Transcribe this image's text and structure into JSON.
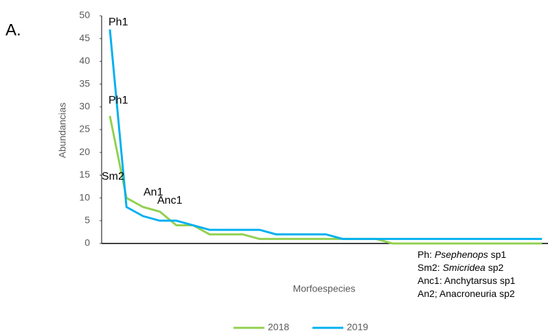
{
  "chart_data": {
    "type": "line",
    "panel_label": "A.",
    "ylabel": "Abundancias",
    "xlabel": "Morfoespecies",
    "categories": [
      null,
      null,
      null,
      null,
      null,
      null,
      null,
      null,
      null,
      null,
      null,
      null,
      null,
      null,
      null,
      null,
      null,
      null,
      null,
      null,
      null,
      null,
      null,
      null,
      null,
      null,
      null
    ],
    "series": [
      {
        "name": "2018",
        "color": "#92d050",
        "values": [
          28,
          10,
          8,
          7,
          4,
          4,
          2,
          2,
          2,
          1,
          1,
          1,
          1,
          1,
          1,
          1,
          1,
          0,
          0,
          0,
          0,
          0,
          0,
          0,
          0,
          0,
          0
        ]
      },
      {
        "name": "2019",
        "color": "#00b0f0",
        "values": [
          47,
          8,
          6,
          5,
          5,
          4,
          3,
          3,
          3,
          3,
          2,
          2,
          2,
          2,
          1,
          1,
          1,
          1,
          1,
          1,
          1,
          1,
          1,
          1,
          1,
          1,
          1
        ]
      }
    ],
    "ylim": [
      0,
      50
    ],
    "yticks": [
      0,
      5,
      10,
      15,
      20,
      25,
      30,
      35,
      40,
      45,
      50
    ],
    "annotations": [
      "Ph1",
      "Ph1",
      "Sm2",
      "An1",
      "Anc1"
    ],
    "note": [
      [
        {
          "text": "Ph: "
        },
        {
          "text": "Psephenops",
          "italic": true
        },
        {
          "text": " sp1"
        }
      ],
      [
        {
          "text": "Sm2: "
        },
        {
          "text": "Smicridea",
          "italic": true
        },
        {
          "text": " sp2"
        }
      ],
      [
        {
          "text": "Anc1: Anchytarsus sp1"
        }
      ],
      [
        {
          "text": "An2; Anacroneuria sp2"
        }
      ]
    ],
    "legend": "bottom"
  }
}
